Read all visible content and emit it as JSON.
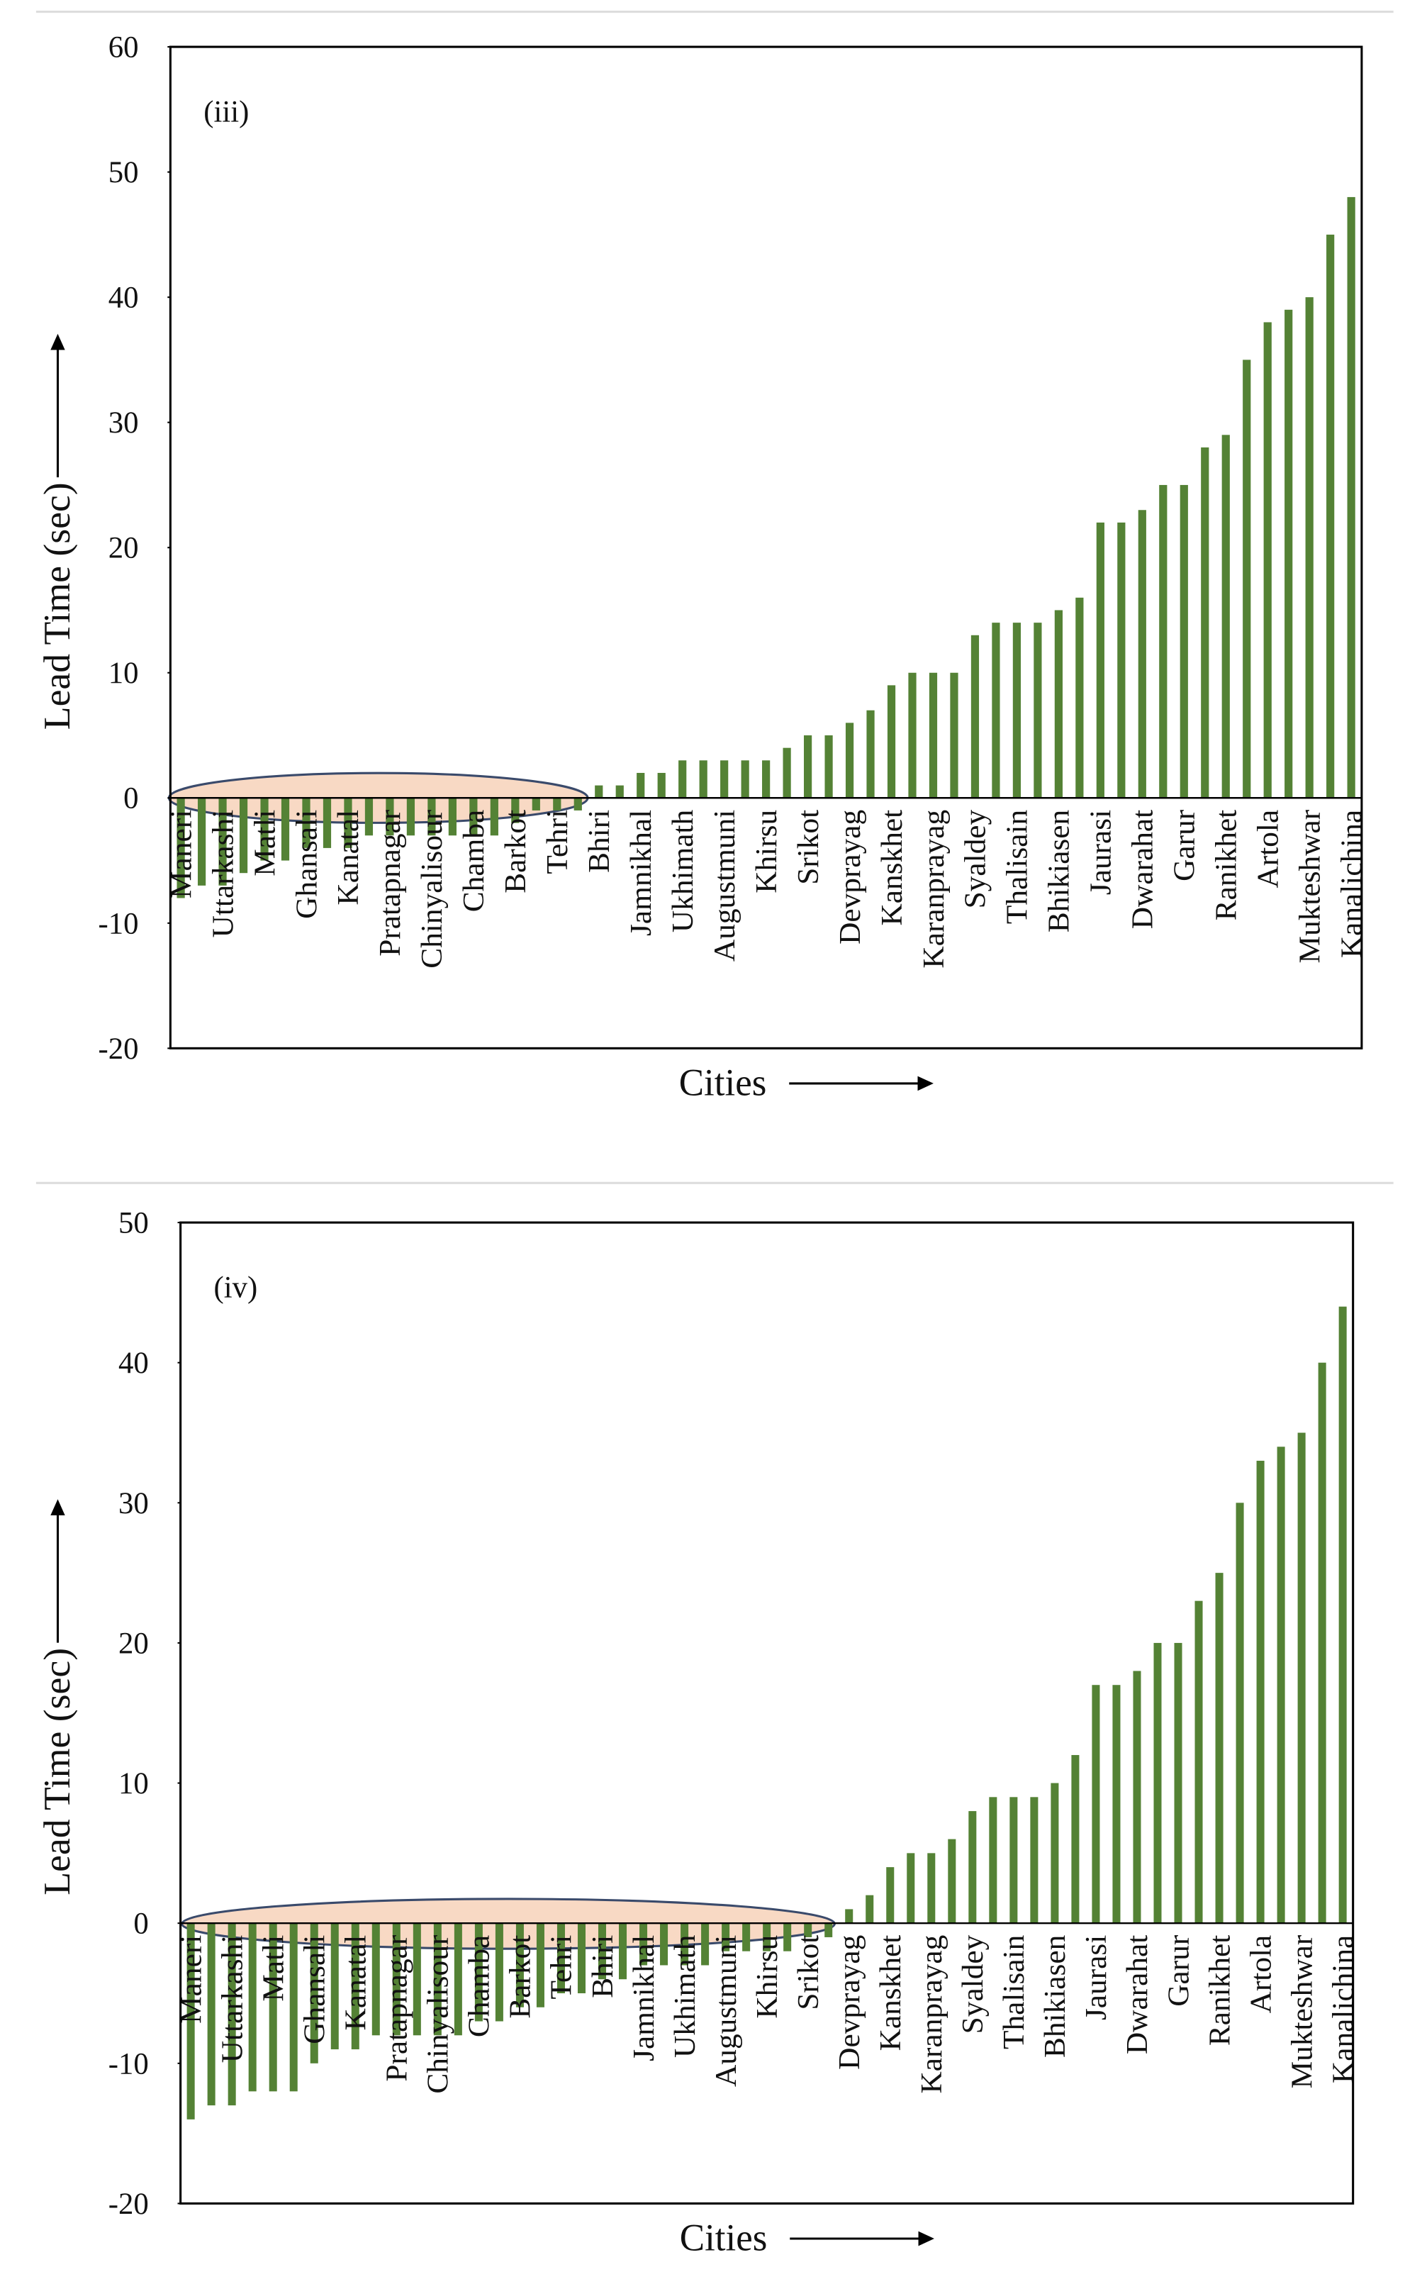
{
  "chart_data": [
    {
      "type": "bar",
      "title": "(iii)",
      "x_label": "Cities",
      "y_label": "Lead Time (sec)",
      "color": "#548235",
      "categories": [
        "Maneri",
        null,
        "Uttarkashi",
        null,
        "Matli",
        null,
        "Ghansali",
        null,
        "Kanatal",
        null,
        "Pratapnagar",
        null,
        "Chinyalisour",
        null,
        "Chamba",
        null,
        "Barkot",
        null,
        "Tehri",
        null,
        "Bhiri",
        null,
        "Jamnikhal",
        null,
        "Ukhimath",
        null,
        "Augustmuni",
        null,
        "Khirsu",
        null,
        "Srikot",
        null,
        "Devprayag",
        null,
        "Kanskhet",
        null,
        "Karanprayag",
        null,
        "Syaldey",
        null,
        "Thalisain",
        null,
        "Bhikiasen",
        null,
        "Jaurasi",
        null,
        "Dwarahat",
        null,
        "Garur",
        null,
        "Ranikhet",
        null,
        "Artola",
        null,
        "Mukteshwar",
        null,
        "Kanalichina"
      ],
      "values": [
        -8,
        -7,
        -7,
        -6,
        -5,
        -5,
        -4,
        -4,
        -4,
        -3,
        -3,
        -3,
        -3,
        -3,
        -3,
        -3,
        -2,
        -1,
        -1,
        -1,
        1,
        1,
        2,
        2,
        3,
        3,
        3,
        3,
        3,
        4,
        5,
        5,
        6,
        7,
        9,
        10,
        10,
        10,
        13,
        14,
        14,
        14,
        15,
        16,
        22,
        22,
        23,
        25,
        25,
        28,
        29,
        35,
        38,
        39,
        40,
        45,
        48
      ],
      "ylim": [
        -20,
        60
      ],
      "yticks": [
        -20,
        -10,
        0,
        10,
        20,
        30,
        40,
        50,
        60
      ]
    },
    {
      "type": "bar",
      "title": "(iv)",
      "x_label": "Cities",
      "y_label": "Lead Time (sec)",
      "color": "#548235",
      "categories": [
        "Maneri",
        null,
        "Uttarkashi",
        null,
        "Matli",
        null,
        "Ghansali",
        null,
        "Kanatal",
        null,
        "Pratapnagar",
        null,
        "Chinyalisour",
        null,
        "Chamba",
        null,
        "Barkot",
        null,
        "Tehri",
        null,
        "Bhiri",
        null,
        "Jamnikhal",
        null,
        "Ukhimath",
        null,
        "Augustmuni",
        null,
        "Khirsu",
        null,
        "Srikot",
        null,
        "Devprayag",
        null,
        "Kanskhet",
        null,
        "Karanprayag",
        null,
        "Syaldey",
        null,
        "Thalisain",
        null,
        "Bhikiasen",
        null,
        "Jaurasi",
        null,
        "Dwarahat",
        null,
        "Garur",
        null,
        "Ranikhet",
        null,
        "Artola",
        null,
        "Mukteshwar",
        null,
        "Kanalichina"
      ],
      "values": [
        -14,
        -13,
        -13,
        -12,
        -12,
        -12,
        -10,
        -9,
        -9,
        -8,
        -8,
        -8,
        -8,
        -8,
        -7,
        -7,
        -6,
        -6,
        -5,
        -5,
        -4,
        -4,
        -3,
        -3,
        -3,
        -3,
        -2,
        -2,
        -2,
        -2,
        -1,
        -1,
        1,
        2,
        4,
        5,
        5,
        6,
        8,
        9,
        9,
        9,
        10,
        12,
        17,
        17,
        18,
        20,
        20,
        23,
        25,
        30,
        33,
        34,
        35,
        40,
        44
      ],
      "ylim": [
        -20,
        50
      ],
      "yticks": [
        -20,
        -10,
        0,
        10,
        20,
        30,
        40,
        50
      ]
    }
  ]
}
